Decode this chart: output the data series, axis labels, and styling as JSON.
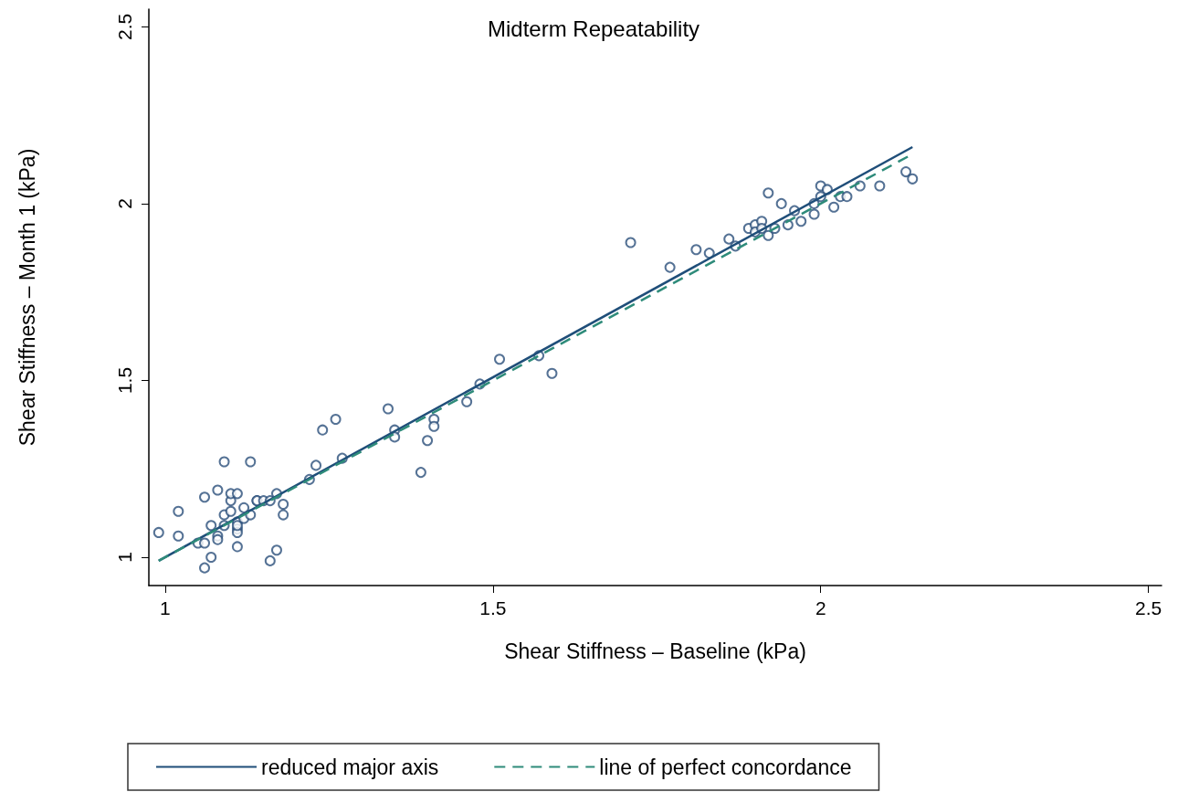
{
  "chart_data": {
    "type": "scatter",
    "title": "Midterm Repeatability",
    "xlabel": "Shear Stiffness – Baseline (kPa)",
    "ylabel": "Shear Stiffness – Month 1 (kPa)",
    "xlim": [
      0.975,
      2.52
    ],
    "ylim": [
      0.92,
      2.55
    ],
    "xticks": [
      1,
      1.5,
      2,
      2.5
    ],
    "yticks": [
      1,
      1.5,
      2,
      2.5
    ],
    "grid": false,
    "legend": "bottom",
    "series": [
      {
        "marker": "circle",
        "color": "#2a4f7a",
        "x": [
          0.99,
          1.02,
          1.02,
          1.06,
          1.08,
          1.09,
          1.13,
          1.05,
          1.06,
          1.07,
          1.06,
          1.07,
          1.08,
          1.08,
          1.09,
          1.09,
          1.1,
          1.1,
          1.11,
          1.1,
          1.11,
          1.11,
          1.11,
          1.11,
          1.12,
          1.12,
          1.11,
          1.13,
          1.14,
          1.14,
          1.15,
          1.16,
          1.17,
          1.18,
          1.18,
          1.17,
          1.16,
          1.22,
          1.23,
          1.24,
          1.26,
          1.27,
          1.34,
          1.35,
          1.35,
          1.41,
          1.41,
          1.4,
          1.39,
          1.46,
          1.48,
          1.51,
          1.57,
          1.59,
          1.71,
          1.77,
          1.81,
          1.83,
          1.86,
          1.87,
          1.89,
          1.9,
          1.9,
          1.91,
          1.91,
          1.92,
          1.94,
          1.92,
          1.93,
          1.95,
          1.96,
          1.97,
          1.99,
          1.99,
          2,
          2.01,
          2,
          2.02,
          2.03,
          2.04,
          2.06,
          2.09,
          2.13,
          2.14
        ],
        "values": [
          1.07,
          1.06,
          1.13,
          1.17,
          1.19,
          1.27,
          1.27,
          1.04,
          1.04,
          1,
          0.97,
          1.09,
          1.06,
          1.05,
          1.09,
          1.12,
          1.16,
          1.18,
          1.18,
          1.13,
          1.1,
          1.08,
          1.07,
          1.09,
          1.11,
          1.14,
          1.03,
          1.12,
          1.16,
          1.16,
          1.16,
          1.16,
          1.18,
          1.15,
          1.12,
          1.02,
          0.99,
          1.22,
          1.26,
          1.36,
          1.39,
          1.28,
          1.42,
          1.36,
          1.34,
          1.39,
          1.37,
          1.33,
          1.24,
          1.44,
          1.49,
          1.56,
          1.57,
          1.52,
          1.89,
          1.82,
          1.87,
          1.86,
          1.9,
          1.88,
          1.93,
          1.94,
          1.92,
          1.95,
          1.93,
          2.03,
          2,
          1.91,
          1.93,
          1.94,
          1.98,
          1.95,
          1.97,
          2,
          2.05,
          2.04,
          2.02,
          1.99,
          2.02,
          2.02,
          2.05,
          2.05,
          2.09,
          2.07
        ]
      },
      {
        "type": "line",
        "name": "reduced major axis",
        "marker": "none",
        "line_style": "solid",
        "color": "#1f4e79",
        "x": [
          0.99,
          2.14
        ],
        "values": [
          0.99,
          2.16
        ]
      },
      {
        "type": "line",
        "name": "line of perfect concordance",
        "marker": "none",
        "line_style": "dashed",
        "color": "#2e8b7a",
        "x": [
          0.99,
          2.14
        ],
        "values": [
          0.99,
          2.14
        ]
      }
    ]
  }
}
